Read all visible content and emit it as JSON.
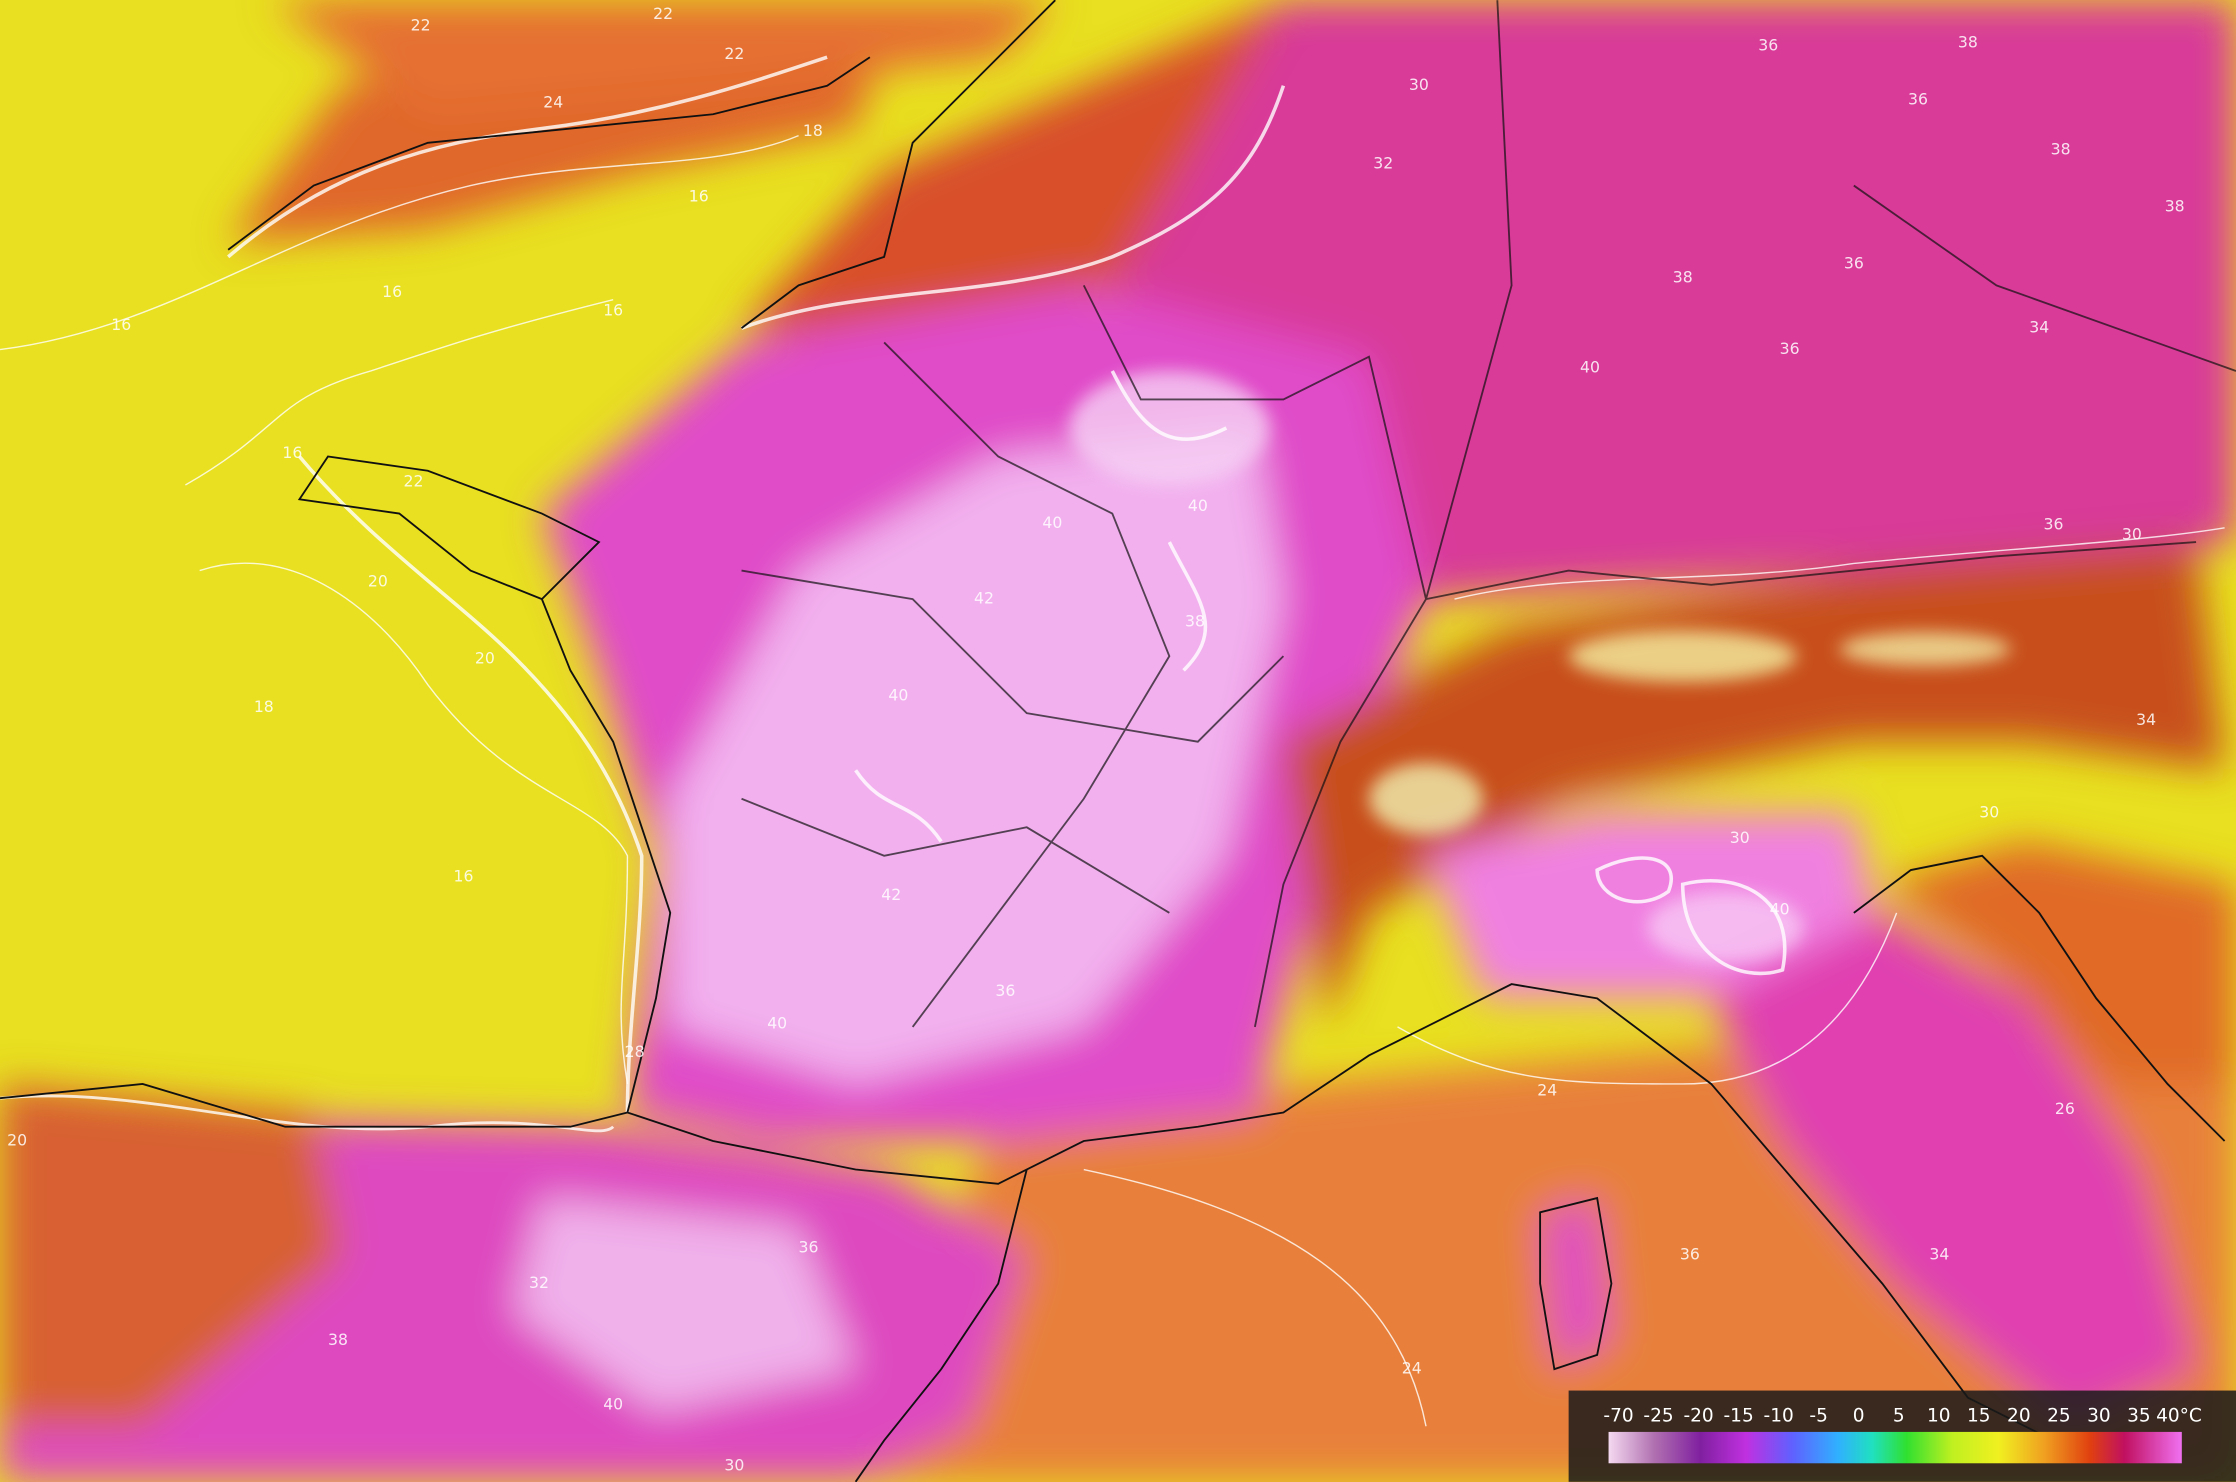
{
  "contour_labels": [
    22,
    22,
    22,
    24,
    18,
    16,
    16,
    16,
    16,
    16,
    22,
    20,
    20,
    18,
    16,
    30,
    32,
    36,
    38,
    36,
    38,
    38,
    36,
    40,
    38,
    36,
    34,
    30,
    36,
    40,
    40,
    42,
    40,
    40,
    30,
    40,
    42,
    38,
    36,
    36,
    38,
    40,
    32,
    34,
    36,
    24,
    24,
    26,
    28,
    20,
    30,
    30,
    34
  ],
  "legend": {
    "ticks": [
      -70,
      -25,
      -20,
      -15,
      -10,
      -5,
      0,
      5,
      10,
      15,
      20,
      25,
      30,
      35,
      {
        "value": 40,
        "label": "40°C"
      }
    ]
  }
}
